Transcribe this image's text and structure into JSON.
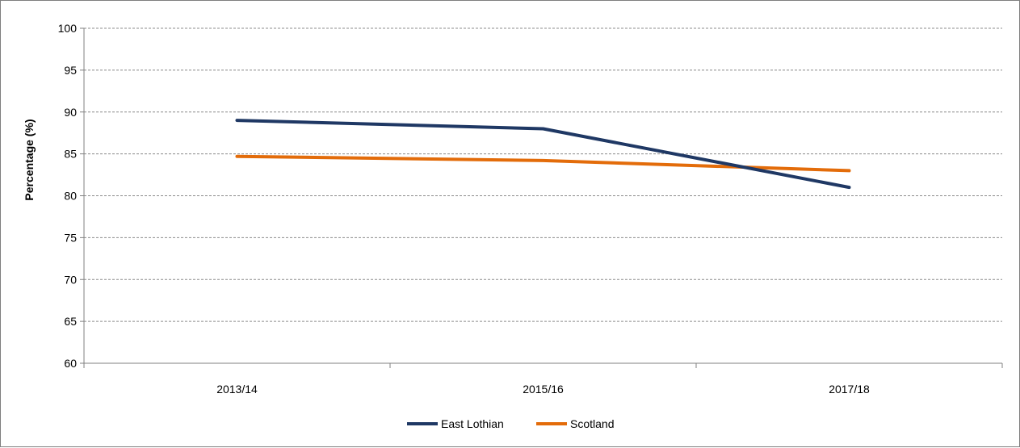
{
  "chart_data": {
    "type": "line",
    "title": "",
    "xlabel": "",
    "ylabel": "Percentage (%)",
    "categories": [
      "2013/14",
      "2015/16",
      "2017/18"
    ],
    "series": [
      {
        "name": "East Lothian",
        "values": [
          89,
          88,
          81
        ],
        "color": "#1f3864"
      },
      {
        "name": "Scotland",
        "values": [
          84.7,
          84.2,
          83
        ],
        "color": "#e36c0a"
      }
    ],
    "ylim": [
      60,
      100
    ],
    "yticks": [
      60,
      65,
      70,
      75,
      80,
      85,
      90,
      95,
      100
    ],
    "grid": true,
    "legend_position": "bottom"
  }
}
